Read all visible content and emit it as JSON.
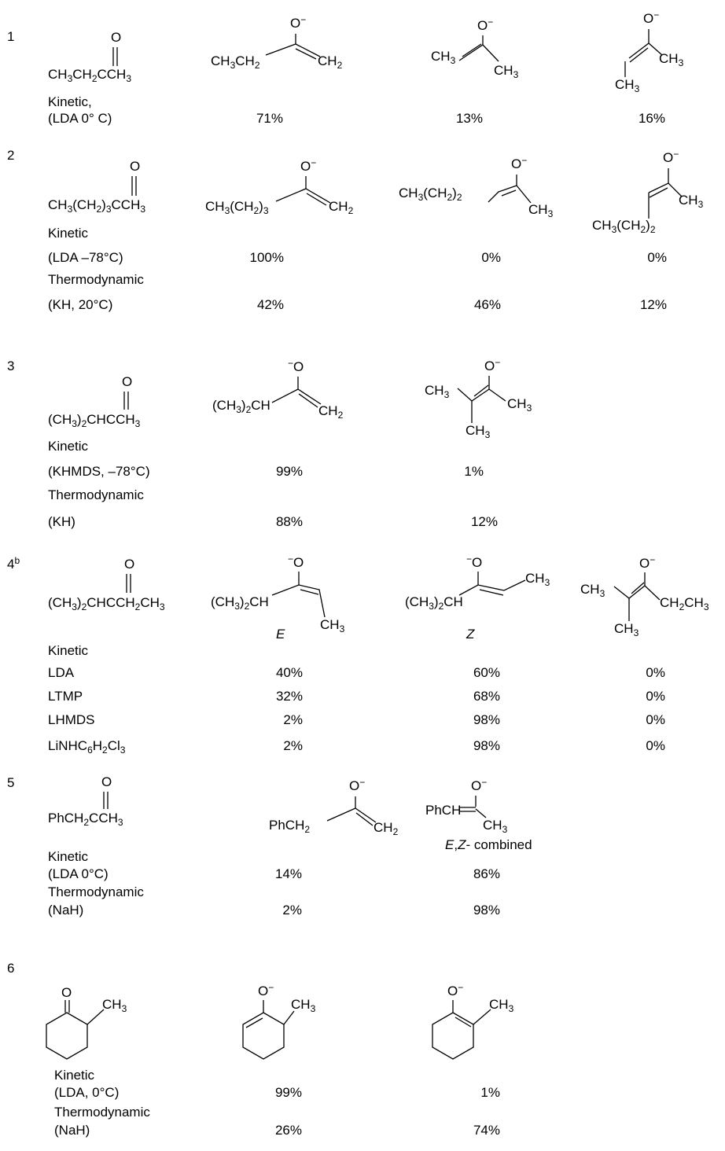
{
  "rows": [
    {
      "number": "1",
      "ketone": {
        "carbonyl_O": "O",
        "formula": "CH<sub>3</sub>CH<sub>2</sub>CCH<sub>3</sub>"
      },
      "enolates": [
        {
          "anion_O": "O<sup>−</sup>",
          "substituent": "CH<sub>3</sub>CH<sub>2</sub>",
          "vinyl": "CH<sub>2</sub>"
        },
        {
          "anion_O": "O<sup>−</sup>",
          "left": "CH<sub>3</sub>",
          "right": "CH<sub>3</sub>"
        },
        {
          "anion_O": "O<sup>−</sup>",
          "right": "CH<sub>3</sub>",
          "bottom": "CH<sub>3</sub>"
        }
      ],
      "conditions": [
        {
          "label": "Kinetic,",
          "reagent": "(LDA 0° C)",
          "values": [
            "71%",
            "13%",
            "16%"
          ]
        }
      ]
    },
    {
      "number": "2",
      "ketone": {
        "carbonyl_O": "O",
        "formula": "CH<sub>3</sub>(CH<sub>2</sub>)<sub>3</sub>CCH<sub>3</sub>"
      },
      "enolates": [
        {
          "anion_O": "O<sup>−</sup>",
          "substituent": "CH<sub>3</sub>(CH<sub>2</sub>)<sub>3</sub>",
          "vinyl": "CH<sub>2</sub>"
        },
        {
          "anion_O": "O<sup>−</sup>",
          "left": "CH<sub>3</sub>(CH<sub>2</sub>)<sub>2</sub>",
          "right": "CH<sub>3</sub>"
        },
        {
          "anion_O": "O<sup>−</sup>",
          "right": "CH<sub>3</sub>",
          "bottom": "CH<sub>3</sub>(CH<sub>2</sub>)<sub>2</sub>"
        }
      ],
      "conditions": [
        {
          "label": "Kinetic",
          "reagent": "(LDA –78°C)",
          "values": [
            "100%",
            "0%",
            "0%"
          ]
        },
        {
          "label": "Thermodynamic",
          "reagent": "(KH, 20°C)",
          "values": [
            "42%",
            "46%",
            "12%"
          ]
        }
      ]
    },
    {
      "number": "3",
      "ketone": {
        "carbonyl_O": "O",
        "formula": "(CH<sub>3</sub>)<sub>2</sub>CHCCH<sub>3</sub>"
      },
      "enolates": [
        {
          "anion_O": "<sup>−</sup>O",
          "substituent": "(CH<sub>3</sub>)<sub>2</sub>CH",
          "vinyl": "CH<sub>2</sub>"
        },
        {
          "anion_O": "O<sup>−</sup>",
          "left": "CH<sub>3</sub>",
          "right": "CH<sub>3</sub>",
          "bottom": "CH<sub>3</sub>"
        }
      ],
      "conditions": [
        {
          "label": "Kinetic",
          "reagent": "(KHMDS, –78°C)",
          "values": [
            "99%",
            "1%"
          ]
        },
        {
          "label": "Thermodynamic",
          "reagent": "(KH)",
          "values": [
            "88%",
            "12%"
          ]
        }
      ]
    },
    {
      "number": "4<sup>b</sup>",
      "ketone": {
        "carbonyl_O": "O",
        "formula": "(CH<sub>3</sub>)<sub>2</sub>CHCCH<sub>2</sub>CH<sub>3</sub>"
      },
      "enolates": [
        {
          "anion_O": "<sup>−</sup>O",
          "left": "(CH<sub>3</sub>)<sub>2</sub>CH",
          "right": "CH<sub>3</sub>",
          "isomer": "E"
        },
        {
          "anion_O": "<sup>−</sup>O",
          "left": "(CH<sub>3</sub>)<sub>2</sub>CH",
          "right": "CH<sub>3</sub>",
          "isomer": "Z"
        },
        {
          "anion_O": "O<sup>−</sup>",
          "left": "CH<sub>3</sub>",
          "right": "CH<sub>2</sub>CH<sub>3</sub>",
          "bottom": "CH<sub>3</sub>"
        }
      ],
      "header": "Kinetic",
      "conditions": [
        {
          "reagent": "LDA",
          "values": [
            "40%",
            "60%",
            "0%"
          ]
        },
        {
          "reagent": "LTMP",
          "values": [
            "32%",
            "68%",
            "0%"
          ]
        },
        {
          "reagent": "LHMDS",
          "values": [
            "2%",
            "98%",
            "0%"
          ]
        },
        {
          "reagent": "LiNHC<sub>6</sub>H<sub>2</sub>Cl<sub>3</sub>",
          "values": [
            "2%",
            "98%",
            "0%"
          ]
        }
      ]
    },
    {
      "number": "5",
      "ketone": {
        "carbonyl_O": "O",
        "formula": "PhCH<sub>2</sub>CCH<sub>3</sub>"
      },
      "enolates": [
        {
          "anion_O": "O<sup>−</sup>",
          "substituent": "PhCH<sub>2</sub>",
          "vinyl": "CH<sub>2</sub>"
        },
        {
          "anion_O": "O<sup>−</sup>",
          "left": "PhCH",
          "right": "CH<sub>3</sub>",
          "note": "<i>E</i>,<i>Z</i>- combined"
        }
      ],
      "conditions": [
        {
          "label": "Kinetic",
          "reagent": "(LDA 0°C)",
          "values": [
            "14%",
            "86%"
          ]
        },
        {
          "label": "Thermodynamic",
          "reagent": "(NaH)",
          "values": [
            "2%",
            "98%"
          ]
        }
      ]
    },
    {
      "number": "6",
      "ketone": {
        "carbonyl_O": "O",
        "substituent": "CH<sub>3</sub>"
      },
      "enolates": [
        {
          "anion_O": "O<sup>−</sup>",
          "substituent": "CH<sub>3</sub>"
        },
        {
          "anion_O": "O<sup>−</sup>",
          "substituent": "CH<sub>3</sub>"
        }
      ],
      "conditions": [
        {
          "label": "Kinetic",
          "reagent": "(LDA, 0°C)",
          "values": [
            "99%",
            "1%"
          ]
        },
        {
          "label": "Thermodynamic",
          "reagent": "(NaH)",
          "values": [
            "26%",
            "74%"
          ]
        }
      ]
    }
  ]
}
